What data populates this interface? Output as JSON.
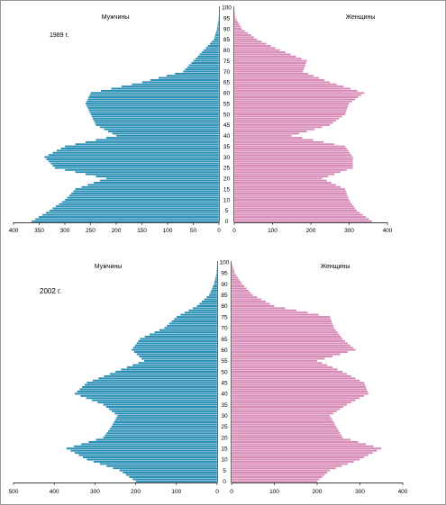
{
  "colors": {
    "male": "#2a8fb4",
    "female": "#d88ab6",
    "bar_stroke": "#ffffff",
    "axis": "#000000",
    "frame": "#999999"
  },
  "chart_data": [
    {
      "type": "bar",
      "orientation": "population-pyramid",
      "year_label": "1989 г.",
      "left_label": "Мужчины",
      "right_label": "Женщины",
      "age_ticks": [
        0,
        5,
        10,
        15,
        20,
        25,
        30,
        35,
        40,
        45,
        50,
        55,
        60,
        65,
        70,
        75,
        80,
        85,
        90,
        95,
        100
      ],
      "male_ticks": [
        400,
        350,
        300,
        250,
        200,
        150,
        100,
        50,
        0
      ],
      "female_ticks": [
        0,
        100,
        200,
        300,
        400
      ],
      "male_xlim": [
        0,
        400
      ],
      "female_xlim": [
        0,
        400
      ],
      "age_keys": [
        0,
        5,
        10,
        15,
        20,
        25,
        30,
        35,
        40,
        45,
        50,
        55,
        60,
        65,
        70,
        75,
        80,
        85,
        90,
        95,
        100
      ],
      "male_key_values": [
        365,
        330,
        300,
        280,
        220,
        320,
        340,
        300,
        200,
        240,
        250,
        260,
        250,
        150,
        70,
        50,
        30,
        10,
        4,
        1,
        0
      ],
      "female_key_values": [
        360,
        320,
        300,
        290,
        230,
        310,
        310,
        290,
        150,
        250,
        290,
        300,
        340,
        250,
        180,
        190,
        120,
        60,
        20,
        4,
        0
      ]
    },
    {
      "type": "bar",
      "orientation": "population-pyramid",
      "year_label": "2002 г.",
      "left_label": "Мужчины",
      "right_label": "Женщины",
      "age_ticks": [
        0,
        5,
        10,
        15,
        20,
        25,
        30,
        35,
        40,
        45,
        50,
        55,
        60,
        65,
        70,
        75,
        80,
        85,
        90,
        95,
        100
      ],
      "male_ticks": [
        500,
        400,
        300,
        200,
        100,
        0
      ],
      "female_ticks": [
        0,
        100,
        200,
        300,
        400
      ],
      "male_xlim": [
        0,
        500
      ],
      "female_xlim": [
        0,
        400
      ],
      "age_keys": [
        0,
        5,
        10,
        15,
        20,
        25,
        30,
        35,
        40,
        45,
        50,
        55,
        60,
        65,
        70,
        75,
        80,
        85,
        90,
        95,
        100
      ],
      "male_key_values": [
        200,
        240,
        320,
        370,
        280,
        260,
        245,
        280,
        350,
        320,
        250,
        180,
        210,
        190,
        130,
        100,
        50,
        20,
        8,
        2,
        0
      ],
      "female_key_values": [
        200,
        230,
        300,
        350,
        260,
        245,
        230,
        270,
        320,
        310,
        260,
        200,
        290,
        260,
        240,
        230,
        100,
        50,
        25,
        8,
        0
      ]
    }
  ]
}
